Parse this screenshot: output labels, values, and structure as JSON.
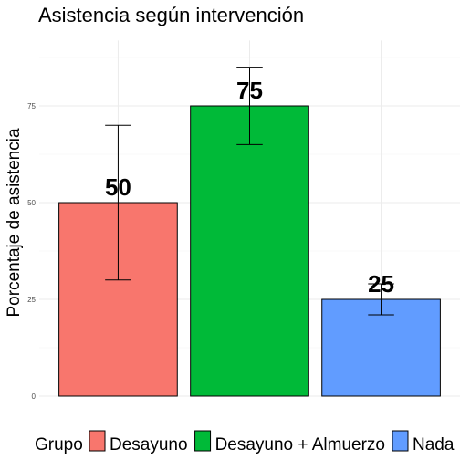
{
  "chart_data": {
    "type": "bar",
    "title": "Asistencia según intervención",
    "xlabel": "",
    "ylabel": "Porcentaje de asistencia",
    "categories": [
      "Desayuno",
      "Desayuno + Almuerzo",
      "Nada"
    ],
    "values": [
      50,
      75,
      25
    ],
    "error_low": [
      30,
      65,
      21
    ],
    "error_high": [
      70,
      85,
      29
    ],
    "data_labels": [
      "50",
      "75",
      "25"
    ],
    "colors": [
      "#F8766D",
      "#00BA38",
      "#619CFF"
    ],
    "ylim": [
      0,
      90
    ],
    "yticks": [
      0,
      25,
      50,
      75
    ],
    "ytick_labels": [
      "0",
      "25",
      "50",
      "75"
    ],
    "grid": true,
    "legend": {
      "title": "Grupo",
      "position": "bottom",
      "entries": [
        "Desayuno",
        "Desayuno + Almuerzo",
        "Nada"
      ]
    }
  }
}
